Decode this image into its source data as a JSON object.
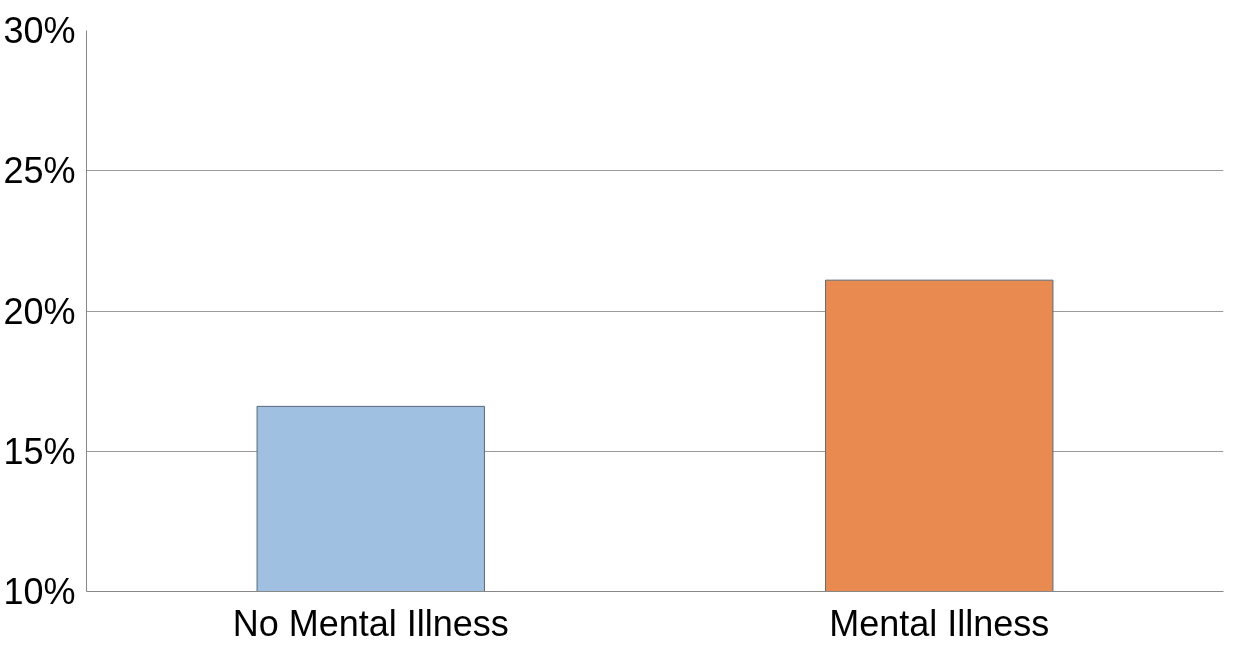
{
  "chart_data": {
    "type": "bar",
    "categories": [
      "No Mental Illness",
      "Mental Illness"
    ],
    "values": [
      16.6,
      21.1
    ],
    "colors": [
      "#9fc0e0",
      "#e98b50"
    ],
    "ylim": [
      10,
      30
    ],
    "yticks": [
      {
        "value": 10,
        "label": "10%"
      },
      {
        "value": 15,
        "label": "15%"
      },
      {
        "value": 20,
        "label": "20%"
      },
      {
        "value": 25,
        "label": "25%"
      },
      {
        "value": 30,
        "label": "30%"
      }
    ],
    "grid": "y"
  }
}
